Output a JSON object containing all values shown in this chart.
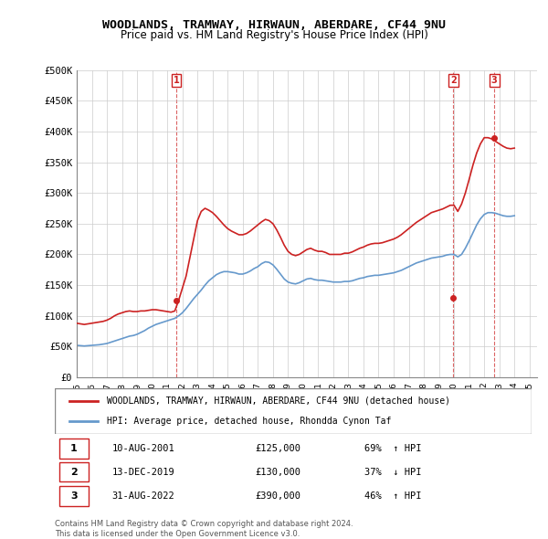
{
  "title": "WOODLANDS, TRAMWAY, HIRWAUN, ABERDARE, CF44 9NU",
  "subtitle": "Price paid vs. HM Land Registry's House Price Index (HPI)",
  "xlabel": "",
  "ylabel": "",
  "ylim": [
    0,
    500000
  ],
  "xlim": [
    1995,
    2025.5
  ],
  "yticks": [
    0,
    50000,
    100000,
    150000,
    200000,
    250000,
    300000,
    350000,
    400000,
    450000,
    500000
  ],
  "ytick_labels": [
    "£0",
    "£50K",
    "£100K",
    "£150K",
    "£200K",
    "£250K",
    "£300K",
    "£350K",
    "£400K",
    "£450K",
    "£500K"
  ],
  "hpi_color": "#6699cc",
  "price_color": "#cc2222",
  "sale_marker_color": "#cc2222",
  "background_color": "#ffffff",
  "grid_color": "#cccccc",
  "sales": [
    {
      "label": "1",
      "year": 2001.6,
      "price": 125000,
      "date": "10-AUG-2001",
      "pct": "69%",
      "dir": "↑"
    },
    {
      "label": "2",
      "year": 2019.95,
      "price": 130000,
      "date": "13-DEC-2019",
      "pct": "37%",
      "dir": "↓"
    },
    {
      "label": "3",
      "year": 2022.67,
      "price": 390000,
      "date": "31-AUG-2022",
      "pct": "46%",
      "dir": "↑"
    }
  ],
  "legend_line1": "WOODLANDS, TRAMWAY, HIRWAUN, ABERDARE, CF44 9NU (detached house)",
  "legend_line2": "HPI: Average price, detached house, Rhondda Cynon Taf",
  "footer": "Contains HM Land Registry data © Crown copyright and database right 2024.\nThis data is licensed under the Open Government Licence v3.0.",
  "hpi_data_x": [
    1995.0,
    1995.25,
    1995.5,
    1995.75,
    1996.0,
    1996.25,
    1996.5,
    1996.75,
    1997.0,
    1997.25,
    1997.5,
    1997.75,
    1998.0,
    1998.25,
    1998.5,
    1998.75,
    1999.0,
    1999.25,
    1999.5,
    1999.75,
    2000.0,
    2000.25,
    2000.5,
    2000.75,
    2001.0,
    2001.25,
    2001.5,
    2001.75,
    2002.0,
    2002.25,
    2002.5,
    2002.75,
    2003.0,
    2003.25,
    2003.5,
    2003.75,
    2004.0,
    2004.25,
    2004.5,
    2004.75,
    2005.0,
    2005.25,
    2005.5,
    2005.75,
    2006.0,
    2006.25,
    2006.5,
    2006.75,
    2007.0,
    2007.25,
    2007.5,
    2007.75,
    2008.0,
    2008.25,
    2008.5,
    2008.75,
    2009.0,
    2009.25,
    2009.5,
    2009.75,
    2010.0,
    2010.25,
    2010.5,
    2010.75,
    2011.0,
    2011.25,
    2011.5,
    2011.75,
    2012.0,
    2012.25,
    2012.5,
    2012.75,
    2013.0,
    2013.25,
    2013.5,
    2013.75,
    2014.0,
    2014.25,
    2014.5,
    2014.75,
    2015.0,
    2015.25,
    2015.5,
    2015.75,
    2016.0,
    2016.25,
    2016.5,
    2016.75,
    2017.0,
    2017.25,
    2017.5,
    2017.75,
    2018.0,
    2018.25,
    2018.5,
    2018.75,
    2019.0,
    2019.25,
    2019.5,
    2019.75,
    2020.0,
    2020.25,
    2020.5,
    2020.75,
    2021.0,
    2021.25,
    2021.5,
    2021.75,
    2022.0,
    2022.25,
    2022.5,
    2022.75,
    2023.0,
    2023.25,
    2023.5,
    2023.75,
    2024.0
  ],
  "hpi_data_y": [
    52000,
    51500,
    51000,
    51500,
    52000,
    52500,
    53000,
    54000,
    55000,
    57000,
    59000,
    61000,
    63000,
    65000,
    67000,
    68000,
    70000,
    73000,
    76000,
    80000,
    83000,
    86000,
    88000,
    90000,
    92000,
    94000,
    96000,
    100000,
    105000,
    112000,
    120000,
    128000,
    135000,
    142000,
    150000,
    157000,
    162000,
    167000,
    170000,
    172000,
    172000,
    171000,
    170000,
    168000,
    168000,
    170000,
    173000,
    177000,
    180000,
    185000,
    188000,
    187000,
    183000,
    176000,
    168000,
    160000,
    155000,
    153000,
    152000,
    154000,
    157000,
    160000,
    161000,
    159000,
    158000,
    158000,
    157000,
    156000,
    155000,
    155000,
    155000,
    156000,
    156000,
    157000,
    159000,
    161000,
    162000,
    164000,
    165000,
    166000,
    166000,
    167000,
    168000,
    169000,
    170000,
    172000,
    174000,
    177000,
    180000,
    183000,
    186000,
    188000,
    190000,
    192000,
    194000,
    195000,
    196000,
    197000,
    199000,
    200000,
    200000,
    196000,
    200000,
    210000,
    222000,
    235000,
    248000,
    258000,
    265000,
    268000,
    268000,
    267000,
    265000,
    263000,
    262000,
    262000,
    263000
  ],
  "price_data_x": [
    1995.0,
    1995.25,
    1995.5,
    1995.75,
    1996.0,
    1996.25,
    1996.5,
    1996.75,
    1997.0,
    1997.25,
    1997.5,
    1997.75,
    1998.0,
    1998.25,
    1998.5,
    1998.75,
    1999.0,
    1999.25,
    1999.5,
    1999.75,
    2000.0,
    2000.25,
    2000.5,
    2000.75,
    2001.0,
    2001.25,
    2001.5,
    2001.75,
    2002.0,
    2002.25,
    2002.5,
    2002.75,
    2003.0,
    2003.25,
    2003.5,
    2003.75,
    2004.0,
    2004.25,
    2004.5,
    2004.75,
    2005.0,
    2005.25,
    2005.5,
    2005.75,
    2006.0,
    2006.25,
    2006.5,
    2006.75,
    2007.0,
    2007.25,
    2007.5,
    2007.75,
    2008.0,
    2008.25,
    2008.5,
    2008.75,
    2009.0,
    2009.25,
    2009.5,
    2009.75,
    2010.0,
    2010.25,
    2010.5,
    2010.75,
    2011.0,
    2011.25,
    2011.5,
    2011.75,
    2012.0,
    2012.25,
    2012.5,
    2012.75,
    2013.0,
    2013.25,
    2013.5,
    2013.75,
    2014.0,
    2014.25,
    2014.5,
    2014.75,
    2015.0,
    2015.25,
    2015.5,
    2015.75,
    2016.0,
    2016.25,
    2016.5,
    2016.75,
    2017.0,
    2017.25,
    2017.5,
    2017.75,
    2018.0,
    2018.25,
    2018.5,
    2018.75,
    2019.0,
    2019.25,
    2019.5,
    2019.75,
    2020.0,
    2020.25,
    2020.5,
    2020.75,
    2021.0,
    2021.25,
    2021.5,
    2021.75,
    2022.0,
    2022.25,
    2022.5,
    2022.75,
    2023.0,
    2023.25,
    2023.5,
    2023.75,
    2024.0
  ],
  "price_data_y": [
    88000,
    87000,
    86000,
    87000,
    88000,
    89000,
    90000,
    91000,
    93000,
    96000,
    100000,
    103000,
    105000,
    107000,
    108000,
    107000,
    107000,
    108000,
    108000,
    109000,
    110000,
    110000,
    109000,
    108000,
    107000,
    106000,
    108000,
    125000,
    145000,
    165000,
    195000,
    225000,
    255000,
    270000,
    275000,
    272000,
    268000,
    262000,
    255000,
    248000,
    242000,
    238000,
    235000,
    232000,
    232000,
    234000,
    238000,
    243000,
    248000,
    253000,
    257000,
    255000,
    250000,
    240000,
    228000,
    215000,
    205000,
    200000,
    198000,
    200000,
    204000,
    208000,
    210000,
    207000,
    205000,
    205000,
    203000,
    200000,
    200000,
    200000,
    200000,
    202000,
    202000,
    204000,
    207000,
    210000,
    212000,
    215000,
    217000,
    218000,
    218000,
    219000,
    221000,
    223000,
    225000,
    228000,
    232000,
    237000,
    242000,
    247000,
    252000,
    256000,
    260000,
    264000,
    268000,
    270000,
    272000,
    274000,
    277000,
    280000,
    280000,
    270000,
    282000,
    300000,
    322000,
    345000,
    365000,
    380000,
    390000,
    390000,
    388000,
    384000,
    380000,
    376000,
    373000,
    372000,
    373000
  ]
}
